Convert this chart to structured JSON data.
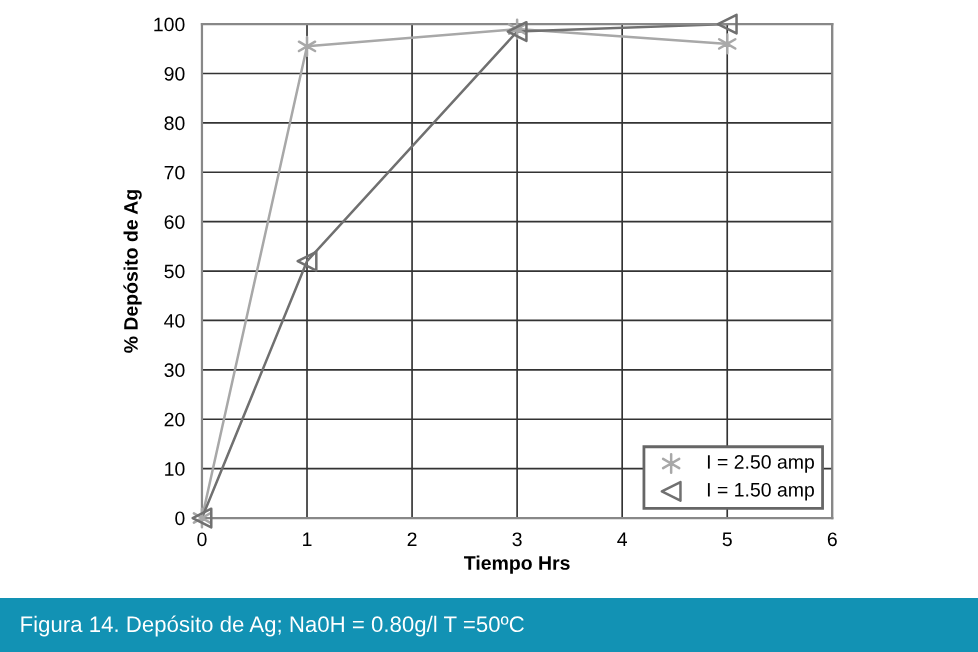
{
  "chart_data": {
    "type": "line",
    "xlabel": "Tiempo Hrs",
    "ylabel": "% Depósito de Ag",
    "x": [
      0,
      1,
      3,
      5
    ],
    "series": [
      {
        "name": "I = 2.50 amp",
        "color": "#a8a8a8",
        "marker": "cross",
        "values": [
          0,
          95.5,
          99,
          96
        ]
      },
      {
        "name": "I = 1.50 amp",
        "color": "#707070",
        "marker": "triangle",
        "values": [
          0,
          52,
          98.5,
          100
        ]
      }
    ],
    "xlim": [
      0,
      6
    ],
    "xticks": [
      0,
      1,
      2,
      3,
      4,
      5,
      6
    ],
    "ylim": [
      0,
      100
    ],
    "yticks": [
      0,
      10,
      20,
      30,
      40,
      50,
      60,
      70,
      80,
      90,
      100
    ],
    "grid": true,
    "legend": "bottom right",
    "line_style": "solid",
    "annotations": [
      "Figura 14. Depósito de Ag; Na0H = 0.80g/l T =50ºC"
    ]
  }
}
